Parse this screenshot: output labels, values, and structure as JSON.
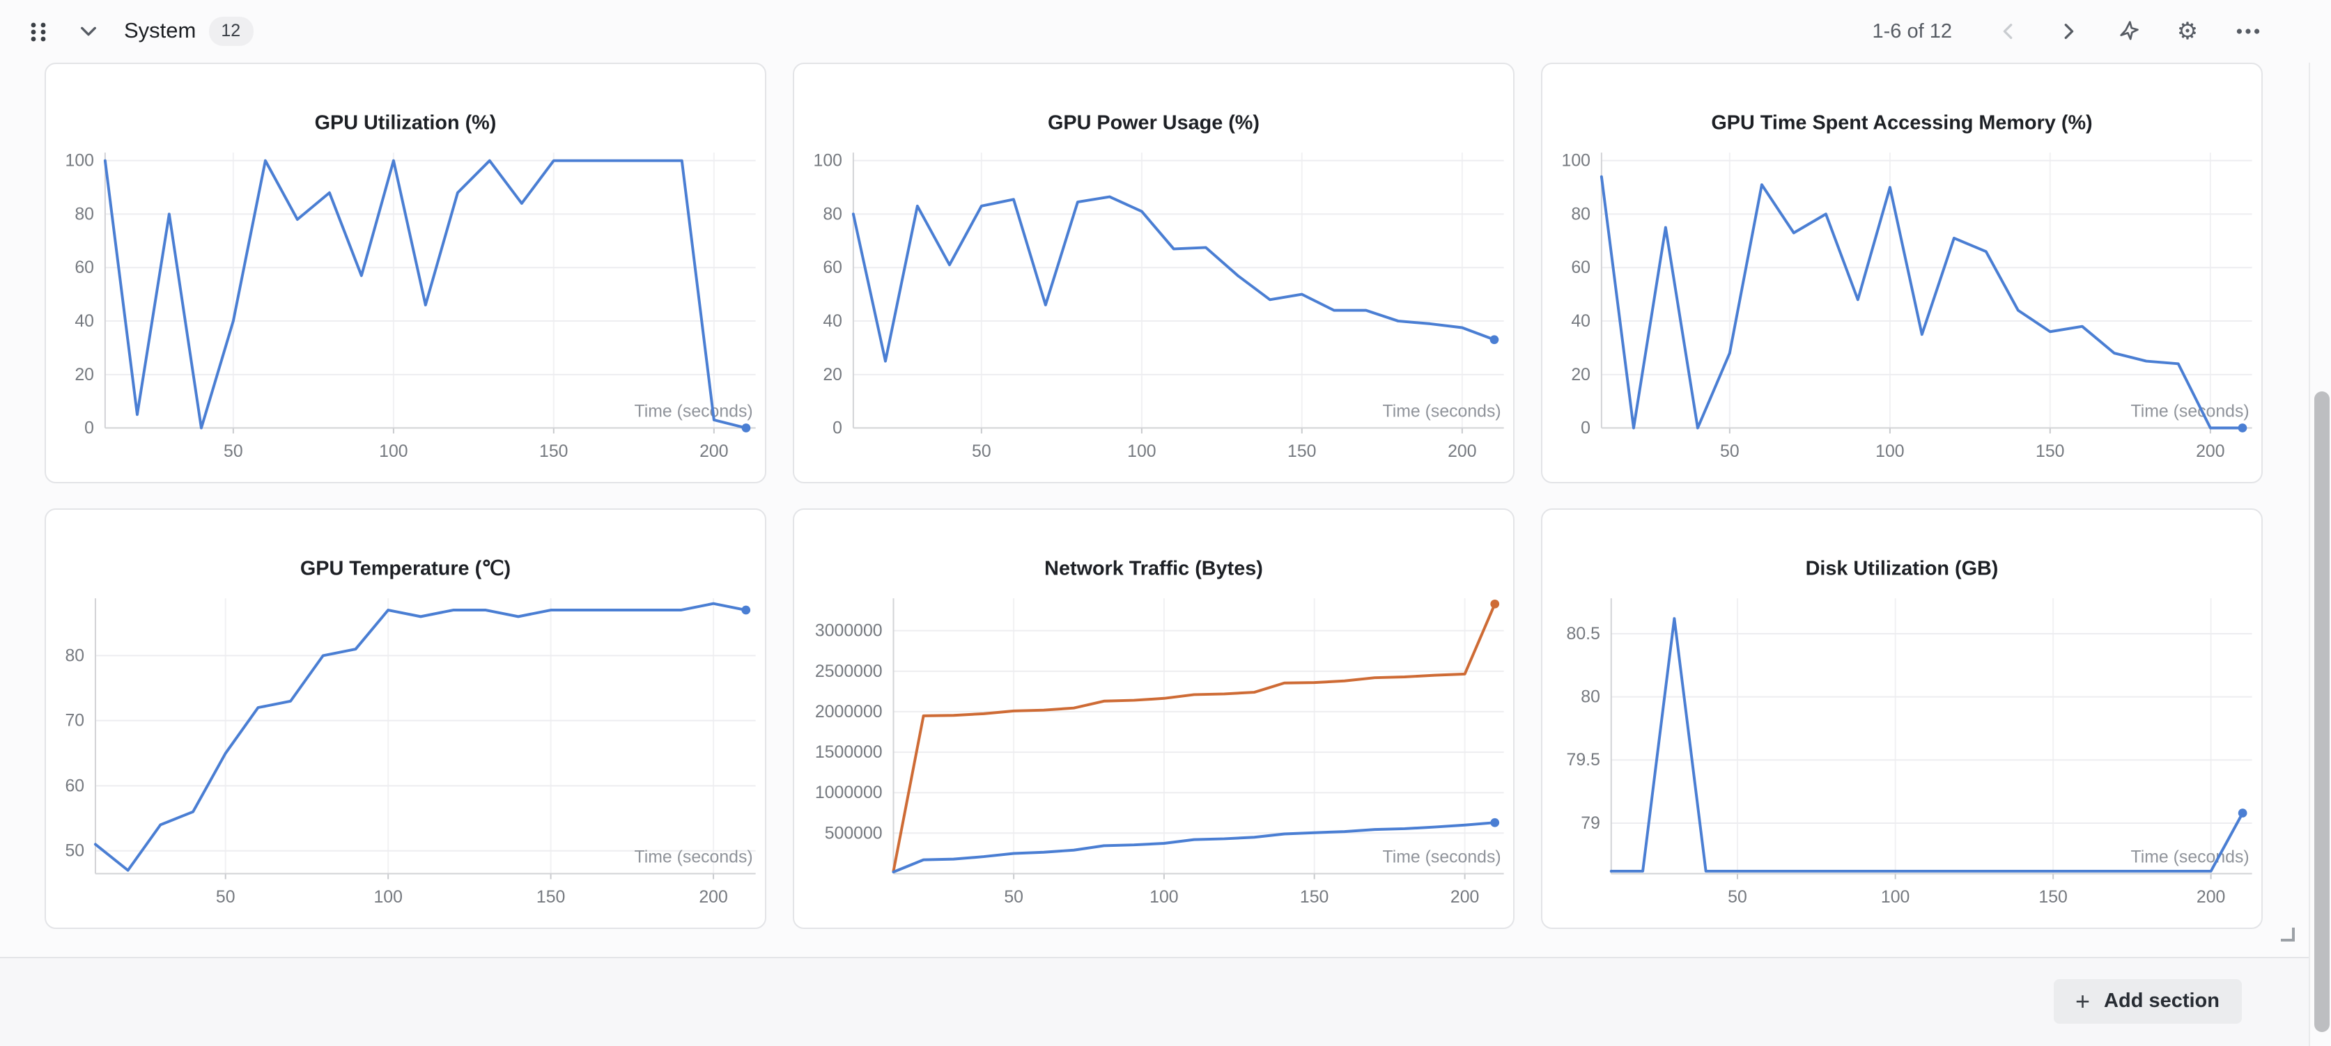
{
  "header": {
    "title": "System",
    "panel_count_badge": "12",
    "pagination": "1-6 of 12",
    "icons": {
      "drag_handle": "grid-dots",
      "collapse": "chevron-down",
      "prev_page": "chevron-left",
      "next_page": "chevron-right",
      "spark": "sparkle",
      "settings": "gear",
      "more": "ellipsis"
    }
  },
  "footer": {
    "add_section_label": "Add section",
    "plus_glyph": "+"
  },
  "colors": {
    "line_blue": "#4A7ED3",
    "line_orange": "#CE6B35"
  },
  "chart_data": [
    {
      "type": "line",
      "title": "GPU Utilization (%)",
      "xlabel": "Time (seconds)",
      "x_ticks": [
        50,
        100,
        150,
        200
      ],
      "y_ticks": [
        0,
        20,
        40,
        60,
        80,
        100
      ],
      "xlim": [
        10,
        213
      ],
      "ylim": [
        0,
        103
      ],
      "grid": true,
      "series": [
        {
          "color": "#4A7ED3",
          "points": [
            [
              10,
              100
            ],
            [
              20,
              5
            ],
            [
              30,
              80
            ],
            [
              40,
              0
            ],
            [
              50,
              40
            ],
            [
              60,
              100
            ],
            [
              70,
              78
            ],
            [
              80,
              88
            ],
            [
              90,
              57
            ],
            [
              100,
              100
            ],
            [
              110,
              46
            ],
            [
              120,
              88
            ],
            [
              130,
              100
            ],
            [
              140,
              84
            ],
            [
              150,
              100
            ],
            [
              160,
              100
            ],
            [
              170,
              100
            ],
            [
              180,
              100
            ],
            [
              190,
              100
            ],
            [
              200,
              3
            ],
            [
              210,
              0
            ]
          ]
        }
      ]
    },
    {
      "type": "line",
      "title": "GPU Power Usage (%)",
      "xlabel": "Time (seconds)",
      "x_ticks": [
        50,
        100,
        150,
        200
      ],
      "y_ticks": [
        0,
        20,
        40,
        60,
        80,
        100
      ],
      "xlim": [
        10,
        213
      ],
      "ylim": [
        0,
        103
      ],
      "grid": true,
      "series": [
        {
          "color": "#4A7ED3",
          "points": [
            [
              10,
              80
            ],
            [
              20,
              25
            ],
            [
              30,
              83
            ],
            [
              40,
              61
            ],
            [
              50,
              83
            ],
            [
              60,
              85.5
            ],
            [
              70,
              46
            ],
            [
              80,
              84.5
            ],
            [
              90,
              86.5
            ],
            [
              100,
              81
            ],
            [
              110,
              67
            ],
            [
              120,
              67.5
            ],
            [
              130,
              57
            ],
            [
              140,
              48
            ],
            [
              150,
              50
            ],
            [
              160,
              44
            ],
            [
              170,
              44
            ],
            [
              180,
              40
            ],
            [
              190,
              39
            ],
            [
              200,
              37.5
            ],
            [
              210,
              33
            ]
          ]
        }
      ]
    },
    {
      "type": "line",
      "title": "GPU Time Spent Accessing Memory (%)",
      "xlabel": "Time (seconds)",
      "x_ticks": [
        50,
        100,
        150,
        200
      ],
      "y_ticks": [
        0,
        20,
        40,
        60,
        80,
        100
      ],
      "xlim": [
        10,
        213
      ],
      "ylim": [
        0,
        103
      ],
      "grid": true,
      "series": [
        {
          "color": "#4A7ED3",
          "points": [
            [
              10,
              94
            ],
            [
              20,
              0
            ],
            [
              30,
              75
            ],
            [
              40,
              0
            ],
            [
              50,
              28
            ],
            [
              60,
              91
            ],
            [
              70,
              73
            ],
            [
              80,
              80
            ],
            [
              90,
              48
            ],
            [
              100,
              90
            ],
            [
              110,
              35
            ],
            [
              120,
              71
            ],
            [
              130,
              66
            ],
            [
              140,
              44
            ],
            [
              150,
              36
            ],
            [
              160,
              38
            ],
            [
              170,
              28
            ],
            [
              180,
              25
            ],
            [
              190,
              24
            ],
            [
              200,
              0
            ],
            [
              210,
              0
            ]
          ]
        }
      ]
    },
    {
      "type": "line",
      "title": "GPU Temperature (℃)",
      "xlabel": "Time (seconds)",
      "x_ticks": [
        50,
        100,
        150,
        200
      ],
      "y_ticks": [
        50,
        60,
        70,
        80
      ],
      "xlim": [
        10,
        213
      ],
      "ylim": [
        46.5,
        88.8
      ],
      "grid": true,
      "series": [
        {
          "color": "#4A7ED3",
          "points": [
            [
              10,
              51
            ],
            [
              20,
              47
            ],
            [
              30,
              54
            ],
            [
              40,
              56
            ],
            [
              50,
              65
            ],
            [
              60,
              72
            ],
            [
              70,
              73
            ],
            [
              80,
              80
            ],
            [
              90,
              81
            ],
            [
              100,
              87
            ],
            [
              110,
              86
            ],
            [
              120,
              87
            ],
            [
              130,
              87
            ],
            [
              140,
              86
            ],
            [
              150,
              87
            ],
            [
              160,
              87
            ],
            [
              170,
              87
            ],
            [
              180,
              87
            ],
            [
              190,
              87
            ],
            [
              200,
              88
            ],
            [
              210,
              87
            ]
          ]
        }
      ]
    },
    {
      "type": "line",
      "title": "Network Traffic (Bytes)",
      "xlabel": "Time (seconds)",
      "x_ticks": [
        50,
        100,
        150,
        200
      ],
      "y_ticks": [
        500000,
        1000000,
        1500000,
        2000000,
        2500000,
        3000000
      ],
      "xlim": [
        10,
        213
      ],
      "ylim": [
        0,
        3400000
      ],
      "grid": true,
      "series": [
        {
          "color": "#CE6B35",
          "points": [
            [
              10,
              30000
            ],
            [
              20,
              1950000
            ],
            [
              30,
              1955000
            ],
            [
              40,
              1975000
            ],
            [
              50,
              2010000
            ],
            [
              60,
              2020000
            ],
            [
              70,
              2045000
            ],
            [
              80,
              2130000
            ],
            [
              90,
              2140000
            ],
            [
              100,
              2165000
            ],
            [
              110,
              2210000
            ],
            [
              120,
              2220000
            ],
            [
              130,
              2240000
            ],
            [
              140,
              2355000
            ],
            [
              150,
              2360000
            ],
            [
              160,
              2380000
            ],
            [
              170,
              2420000
            ],
            [
              180,
              2430000
            ],
            [
              190,
              2450000
            ],
            [
              200,
              2465000
            ],
            [
              210,
              3330000
            ]
          ]
        },
        {
          "color": "#4A7ED3",
          "points": [
            [
              10,
              20000
            ],
            [
              20,
              170000
            ],
            [
              30,
              180000
            ],
            [
              40,
              210000
            ],
            [
              50,
              250000
            ],
            [
              60,
              265000
            ],
            [
              70,
              290000
            ],
            [
              80,
              345000
            ],
            [
              90,
              355000
            ],
            [
              100,
              375000
            ],
            [
              110,
              420000
            ],
            [
              120,
              430000
            ],
            [
              130,
              450000
            ],
            [
              140,
              490000
            ],
            [
              150,
              505000
            ],
            [
              160,
              520000
            ],
            [
              170,
              545000
            ],
            [
              180,
              555000
            ],
            [
              190,
              575000
            ],
            [
              200,
              600000
            ],
            [
              210,
              630000
            ]
          ]
        }
      ]
    },
    {
      "type": "line",
      "title": "Disk Utilization (GB)",
      "xlabel": "Time (seconds)",
      "x_ticks": [
        50,
        100,
        150,
        200
      ],
      "y_ticks": [
        79,
        79.5,
        80,
        80.5
      ],
      "xlim": [
        10,
        213
      ],
      "ylim": [
        78.6,
        80.78
      ],
      "grid": true,
      "series": [
        {
          "color": "#4A7ED3",
          "points": [
            [
              10,
              78.62
            ],
            [
              20,
              78.62
            ],
            [
              30,
              80.62
            ],
            [
              40,
              78.62
            ],
            [
              50,
              78.62
            ],
            [
              60,
              78.62
            ],
            [
              70,
              78.62
            ],
            [
              80,
              78.62
            ],
            [
              90,
              78.62
            ],
            [
              100,
              78.62
            ],
            [
              110,
              78.62
            ],
            [
              120,
              78.62
            ],
            [
              130,
              78.62
            ],
            [
              140,
              78.62
            ],
            [
              150,
              78.62
            ],
            [
              160,
              78.62
            ],
            [
              170,
              78.62
            ],
            [
              180,
              78.62
            ],
            [
              190,
              78.62
            ],
            [
              200,
              78.62
            ],
            [
              210,
              79.08
            ]
          ]
        }
      ]
    }
  ]
}
